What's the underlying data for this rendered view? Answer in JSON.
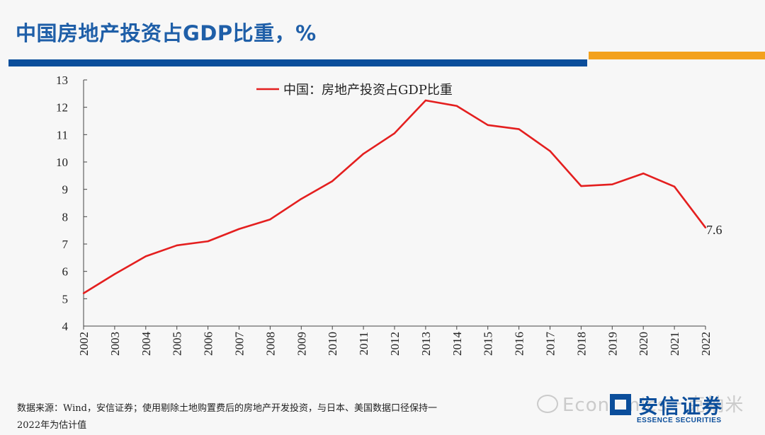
{
  "page": {
    "title": "中国房地产投资占GDP比重，%",
    "footnote_line1": "数据来源：Wind，安信证券；使用剔除土地购置费后的房地产开发投资，与日本、美国数据口径保持一",
    "footnote_line2": "2022年为估计值",
    "watermark": "Economics一克纳米",
    "logo_name": "安信证券",
    "logo_en": "ESSENCE SECURITIES"
  },
  "colors": {
    "title": "#1f5fa8",
    "brand_blue": "#0b4e9b",
    "brand_orange": "#f3a11d",
    "series": "#e41f1f"
  },
  "chart_data": {
    "type": "line",
    "title": "",
    "xlabel": "",
    "ylabel": "",
    "ylim": [
      4,
      13
    ],
    "yticks": [
      4,
      5,
      6,
      7,
      8,
      9,
      10,
      11,
      12,
      13
    ],
    "categories": [
      "2002",
      "2003",
      "2004",
      "2005",
      "2006",
      "2007",
      "2008",
      "2009",
      "2010",
      "2011",
      "2012",
      "2013",
      "2014",
      "2015",
      "2016",
      "2017",
      "2018",
      "2019",
      "2020",
      "2021",
      "2022"
    ],
    "series": [
      {
        "name": "中国：房地产投资占GDP比重",
        "values": [
          5.2,
          5.9,
          6.55,
          6.95,
          7.1,
          7.55,
          7.9,
          8.65,
          9.3,
          10.3,
          11.05,
          12.25,
          12.05,
          11.35,
          11.2,
          10.4,
          9.12,
          9.18,
          9.58,
          9.1,
          7.6
        ]
      }
    ],
    "annotations": [
      {
        "category": "2022",
        "label": "7.6"
      }
    ],
    "legend_position": "top-center",
    "grid": false
  }
}
